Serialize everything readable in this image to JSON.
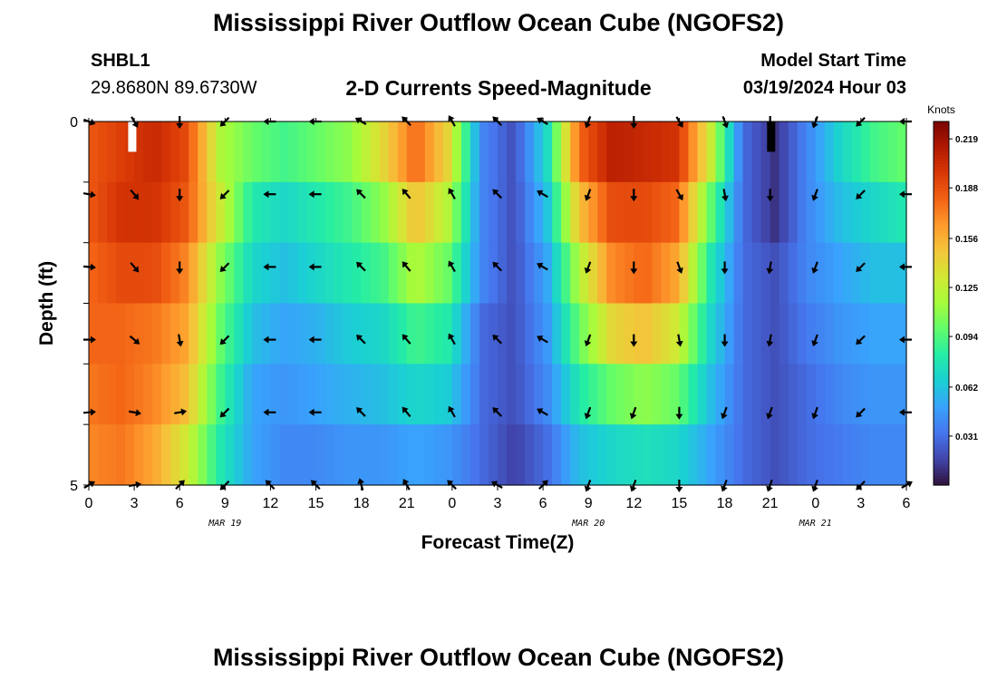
{
  "header": {
    "title": "Mississippi River Outflow Ocean Cube (NGOFS2)",
    "station": "SHBL1",
    "coordinates": "29.8680N  89.6730W",
    "variable": "2-D Currents Speed-Magnitude",
    "model_start_label": "Model Start Time",
    "model_start_value": "03/19/2024 Hour 03"
  },
  "footer": {
    "title": "Mississippi River Outflow Ocean Cube (NGOFS2)"
  },
  "chart_data": {
    "type": "heatmap",
    "xlabel": "Forecast Time(Z)",
    "ylabel": "Depth (ft)",
    "x_tick_labels": [
      "0",
      "3",
      "6",
      "9",
      "12",
      "15",
      "18",
      "21",
      "0",
      "3",
      "6",
      "9",
      "12",
      "15",
      "18",
      "21",
      "0",
      "3",
      "6"
    ],
    "date_labels": [
      {
        "text": "MAR 19",
        "at_tick": 3
      },
      {
        "text": "MAR 20",
        "at_tick": 11
      },
      {
        "text": "MAR 21",
        "at_tick": 16
      }
    ],
    "y_tick_labels": [
      "0",
      "5"
    ],
    "ylim": [
      0,
      5
    ],
    "x_range_hours": [
      0,
      54
    ],
    "colorbar": {
      "unit": "Knots",
      "min": 0.0,
      "max": 0.23,
      "ticks": [
        "0.219",
        "0.188",
        "0.156",
        "0.125",
        "0.094",
        "0.062",
        "0.031"
      ],
      "colors": [
        "#30123b",
        "#4145ab",
        "#4675ed",
        "#39a2fc",
        "#1bcfd4",
        "#24eca6",
        "#61fc6c",
        "#a4fc3b",
        "#d1e834",
        "#f3c63a",
        "#fe9b2d",
        "#f36315",
        "#d93806",
        "#b11901",
        "#7a0403"
      ]
    },
    "depth_layers": 5,
    "layer_speeds": [
      [
        0.185,
        0.195,
        0.205,
        0.19,
        0.12,
        0.1,
        0.09,
        0.1,
        0.11,
        0.14,
        0.18,
        0.14,
        0.04,
        0.02,
        0.07,
        0.18,
        0.21,
        0.205,
        0.2,
        0.13,
        0.03,
        0.01,
        0.04,
        0.07,
        0.09,
        0.1
      ],
      [
        0.185,
        0.2,
        0.2,
        0.185,
        0.13,
        0.08,
        0.07,
        0.08,
        0.09,
        0.11,
        0.15,
        0.12,
        0.04,
        0.02,
        0.06,
        0.15,
        0.19,
        0.19,
        0.18,
        0.1,
        0.03,
        0.01,
        0.04,
        0.06,
        0.07,
        0.08
      ],
      [
        0.18,
        0.19,
        0.19,
        0.17,
        0.11,
        0.07,
        0.06,
        0.07,
        0.08,
        0.09,
        0.12,
        0.1,
        0.04,
        0.02,
        0.05,
        0.12,
        0.17,
        0.18,
        0.16,
        0.08,
        0.03,
        0.02,
        0.04,
        0.05,
        0.06,
        0.06
      ],
      [
        0.18,
        0.18,
        0.175,
        0.16,
        0.1,
        0.06,
        0.05,
        0.055,
        0.065,
        0.07,
        0.09,
        0.08,
        0.03,
        0.02,
        0.045,
        0.1,
        0.14,
        0.15,
        0.13,
        0.07,
        0.03,
        0.02,
        0.035,
        0.045,
        0.05,
        0.05
      ],
      [
        0.175,
        0.18,
        0.17,
        0.15,
        0.09,
        0.05,
        0.045,
        0.05,
        0.055,
        0.06,
        0.07,
        0.065,
        0.03,
        0.02,
        0.04,
        0.08,
        0.1,
        0.11,
        0.1,
        0.06,
        0.03,
        0.02,
        0.03,
        0.04,
        0.045,
        0.045
      ],
      [
        0.17,
        0.175,
        0.16,
        0.13,
        0.08,
        0.05,
        0.04,
        0.04,
        0.045,
        0.045,
        0.05,
        0.045,
        0.03,
        0.015,
        0.03,
        0.06,
        0.07,
        0.075,
        0.07,
        0.05,
        0.03,
        0.02,
        0.03,
        0.035,
        0.04,
        0.04
      ]
    ],
    "vector_times_hours": [
      0,
      3,
      6,
      9,
      12,
      15,
      18,
      21,
      24,
      27,
      30,
      33,
      36,
      39,
      42,
      45,
      48,
      51,
      54
    ],
    "vector_directions_deg": [
      [
        110,
        150,
        180,
        225,
        270,
        270,
        300,
        315,
        330,
        315,
        300,
        200,
        180,
        150,
        160,
        180,
        200,
        225,
        270
      ],
      [
        100,
        140,
        180,
        225,
        270,
        270,
        315,
        320,
        330,
        315,
        300,
        200,
        180,
        150,
        170,
        180,
        200,
        225,
        270
      ],
      [
        95,
        140,
        180,
        225,
        270,
        270,
        315,
        320,
        330,
        315,
        300,
        200,
        180,
        160,
        180,
        190,
        200,
        225,
        270
      ],
      [
        90,
        130,
        170,
        225,
        270,
        270,
        315,
        320,
        330,
        315,
        300,
        200,
        180,
        170,
        180,
        190,
        200,
        225,
        270
      ],
      [
        85,
        100,
        80,
        225,
        270,
        270,
        315,
        320,
        330,
        315,
        300,
        200,
        200,
        180,
        200,
        200,
        200,
        225,
        270
      ],
      [
        60,
        80,
        45,
        225,
        315,
        315,
        345,
        330,
        315,
        300,
        45,
        200,
        200,
        180,
        200,
        200,
        200,
        225,
        60
      ]
    ]
  }
}
